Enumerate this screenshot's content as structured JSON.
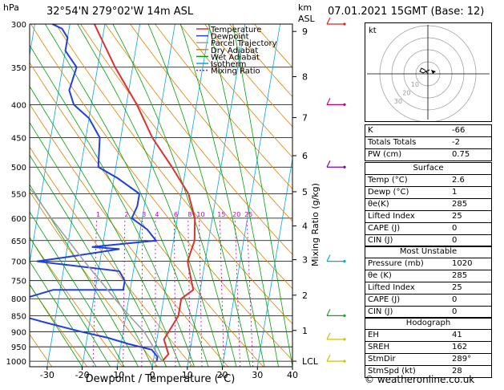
{
  "header": {
    "location": "32°54'N  279°02'W  14m  ASL",
    "datetime": "07.01.2021  15GMT  (Base: 12)",
    "hpa_unit": "hPa",
    "km_unit": "km",
    "asl_unit": "ASL"
  },
  "footer": {
    "credit": "© weatheronline.co.uk"
  },
  "chart_data": {
    "type": "line",
    "title": "",
    "xlabel": "Dewpoint / Temperature (°C)",
    "y_right_label": "Mixing Ratio (g/kg)",
    "x_ticks": [
      -30,
      -20,
      -10,
      0,
      10,
      20,
      30,
      40
    ],
    "xlim": [
      -35,
      40
    ],
    "pressure_levels": [
      300,
      350,
      400,
      450,
      500,
      550,
      600,
      650,
      700,
      750,
      800,
      850,
      900,
      950,
      1000
    ],
    "pressure_range": [
      300,
      1020
    ],
    "skew_degC_per_decade": 31,
    "km_ticks": [
      {
        "label": "9",
        "p": 308
      },
      {
        "label": "8",
        "p": 362
      },
      {
        "label": "7",
        "p": 419
      },
      {
        "label": "6",
        "p": 480
      },
      {
        "label": "5",
        "p": 546
      },
      {
        "label": "4",
        "p": 617
      },
      {
        "label": "3",
        "p": 696
      },
      {
        "label": "2",
        "p": 790
      },
      {
        "label": "1",
        "p": 896
      },
      {
        "label": "LCL",
        "p": 1000
      }
    ],
    "mixing_ratio_labels": [
      "1",
      "2",
      "3",
      "4",
      "6",
      "8",
      "10",
      "15",
      "20",
      "25"
    ],
    "mixing_ratio_values": [
      1,
      2,
      3,
      4,
      6,
      8,
      10,
      15,
      20,
      25
    ],
    "legend": [
      {
        "name": "Temperature",
        "color": "#e03030"
      },
      {
        "name": "Dewpoint",
        "color": "#2040e0"
      },
      {
        "name": "Parcel Trajectory",
        "color": "#a0a0a0"
      },
      {
        "name": "Dry Adiabat",
        "color": "#e08000"
      },
      {
        "name": "Wet Adiabat",
        "color": "#00a000"
      },
      {
        "name": "Isotherm",
        "color": "#00a8e0"
      },
      {
        "name": "Mixing Ratio",
        "color": "#c000c0"
      }
    ],
    "series": [
      {
        "name": "Temperature",
        "color": "#e03030",
        "points": [
          [
            2.6,
            1000
          ],
          [
            4,
            975
          ],
          [
            3,
            950
          ],
          [
            2,
            925
          ],
          [
            3,
            900
          ],
          [
            5,
            850
          ],
          [
            5,
            800
          ],
          [
            8,
            775
          ],
          [
            7,
            750
          ],
          [
            5,
            700
          ],
          [
            6,
            650
          ],
          [
            5,
            600
          ],
          [
            2,
            550
          ],
          [
            -4,
            500
          ],
          [
            -11,
            450
          ],
          [
            -17,
            400
          ],
          [
            -25,
            350
          ],
          [
            -33,
            300
          ]
        ]
      },
      {
        "name": "Dewpoint",
        "color": "#2040e0",
        "points": [
          [
            1,
            1000
          ],
          [
            1,
            985
          ],
          [
            -1,
            960
          ],
          [
            -8,
            940
          ],
          [
            -14,
            920
          ],
          [
            -22,
            900
          ],
          [
            -33,
            870
          ],
          [
            -40,
            850
          ],
          [
            -40,
            800
          ],
          [
            -32,
            775
          ],
          [
            -12,
            775
          ],
          [
            -12,
            750
          ],
          [
            -14,
            725
          ],
          [
            -38,
            700
          ],
          [
            -30,
            690
          ],
          [
            -15,
            670
          ],
          [
            -23,
            665
          ],
          [
            -5,
            650
          ],
          [
            -8,
            625
          ],
          [
            -13,
            600
          ],
          [
            -12,
            575
          ],
          [
            -12,
            550
          ],
          [
            -19,
            520
          ],
          [
            -25,
            500
          ],
          [
            -26,
            450
          ],
          [
            -30,
            420
          ],
          [
            -35,
            400
          ],
          [
            -37,
            380
          ],
          [
            -36,
            350
          ],
          [
            -40,
            330
          ],
          [
            -40,
            315
          ],
          [
            -42,
            305
          ],
          [
            -45,
            300
          ]
        ]
      },
      {
        "name": "Parcel Trajectory",
        "color": "#a0a0a0",
        "points": [
          [
            2.6,
            1000
          ],
          [
            1.5,
            985
          ],
          [
            -4,
            900
          ],
          [
            -9,
            850
          ],
          [
            -14,
            800
          ],
          [
            -19,
            750
          ],
          [
            -24.5,
            700
          ],
          [
            -30,
            650
          ],
          [
            -36,
            600
          ],
          [
            -42,
            550
          ],
          [
            -50,
            500
          ],
          [
            -58,
            450
          ],
          [
            -66,
            400
          ]
        ]
      }
    ],
    "wind_barbs": [
      {
        "p": 300,
        "color": "#e02020"
      },
      {
        "p": 400,
        "color": "#c0008c"
      },
      {
        "p": 500,
        "color": "#8000c0"
      },
      {
        "p": 700,
        "color": "#00b0c0"
      },
      {
        "p": 850,
        "color": "#20a020"
      },
      {
        "p": 925,
        "color": "#d0c000"
      },
      {
        "p": 1000,
        "color": "#d0c000"
      }
    ],
    "hodograph": {
      "unit_label": "kt",
      "ring_labels": [
        "10",
        "20",
        "30"
      ]
    }
  },
  "indices": [
    {
      "label": "K",
      "value": "-66"
    },
    {
      "label": "Totals Totals",
      "value": "-2"
    },
    {
      "label": "PW (cm)",
      "value": "0.75"
    }
  ],
  "surface": {
    "title": "Surface",
    "rows": [
      {
        "label": "Temp (°C)",
        "value": "2.6"
      },
      {
        "label": "Dewp (°C)",
        "value": "1"
      },
      {
        "label": "θe(K)",
        "value": "285"
      },
      {
        "label": "Lifted Index",
        "value": "25"
      },
      {
        "label": "CAPE (J)",
        "value": "0"
      },
      {
        "label": "CIN (J)",
        "value": "0"
      }
    ]
  },
  "most_unstable": {
    "title": "Most Unstable",
    "rows": [
      {
        "label": "Pressure (mb)",
        "value": "1020"
      },
      {
        "label": "θe (K)",
        "value": "285"
      },
      {
        "label": "Lifted Index",
        "value": "25"
      },
      {
        "label": "CAPE (J)",
        "value": "0"
      },
      {
        "label": "CIN (J)",
        "value": "0"
      }
    ]
  },
  "hodograph_table": {
    "title": "Hodograph",
    "rows": [
      {
        "label": "EH",
        "value": "41"
      },
      {
        "label": "SREH",
        "value": "162"
      },
      {
        "label": "StmDir",
        "value": "289°"
      },
      {
        "label": "StmSpd (kt)",
        "value": "28"
      }
    ]
  }
}
